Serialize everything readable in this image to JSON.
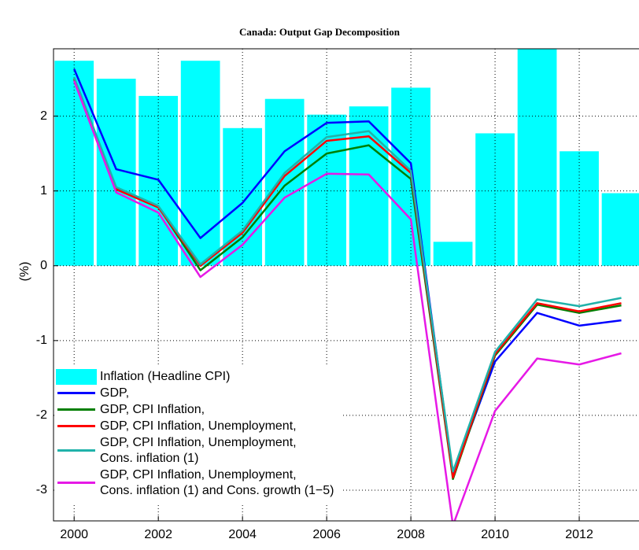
{
  "chart_data": {
    "type": "combo",
    "title": "Canada: Output Gap Decomposition",
    "y_label": "(%)",
    "x": [
      2000,
      2001,
      2002,
      2003,
      2004,
      2005,
      2006,
      2007,
      2008,
      2009,
      2010,
      2011,
      2012,
      2013
    ],
    "xlim": [
      1999.51,
      2013.42
    ],
    "xticks": [
      2000,
      2002,
      2004,
      2006,
      2008,
      2010,
      2012
    ],
    "ylim": [
      -3.41,
      2.9
    ],
    "yticks": [
      -3,
      -2,
      -1,
      0,
      1,
      2
    ],
    "grid": true,
    "legend": "lower left",
    "series": [
      {
        "name": "Inflation (Headline CPI)",
        "type": "bar",
        "color": "#00ffff",
        "values": [
          2.74,
          2.5,
          2.27,
          2.74,
          1.84,
          2.23,
          2.02,
          2.13,
          2.38,
          0.32,
          1.77,
          2.9,
          1.53,
          0.97
        ]
      },
      {
        "name": "GDP,",
        "type": "line",
        "color": "#0000ff",
        "values": [
          2.63,
          1.29,
          1.15,
          0.37,
          0.84,
          1.53,
          1.91,
          1.93,
          1.37,
          -2.8,
          -1.28,
          -0.63,
          -0.8,
          -0.73
        ]
      },
      {
        "name": "GDP, CPI Inflation,",
        "type": "line",
        "color": "#007f00",
        "values": [
          2.5,
          1.03,
          0.79,
          -0.06,
          0.38,
          1.07,
          1.5,
          1.61,
          1.16,
          -2.85,
          -1.2,
          -0.52,
          -0.63,
          -0.53
        ]
      },
      {
        "name": "GDP, CPI Inflation, Unemployment,",
        "type": "line",
        "color": "#ff0000",
        "values": [
          2.5,
          1.02,
          0.78,
          0.0,
          0.44,
          1.2,
          1.67,
          1.73,
          1.24,
          -2.83,
          -1.18,
          -0.5,
          -0.61,
          -0.5
        ]
      },
      {
        "name": "GDP, CPI Inflation, Unemployment,\nCons. inflation (1)",
        "type": "line",
        "color": "#20b2aa",
        "values": [
          2.52,
          1.05,
          0.8,
          0.02,
          0.47,
          1.24,
          1.72,
          1.8,
          1.27,
          -2.75,
          -1.15,
          -0.45,
          -0.54,
          -0.43
        ]
      },
      {
        "name": "GDP, CPI Inflation, Unemployment,\nCons. inflation (1) and Cons. growth (1−5)",
        "type": "line",
        "color": "#e619e6",
        "values": [
          2.47,
          0.98,
          0.71,
          -0.15,
          0.28,
          0.91,
          1.23,
          1.22,
          0.62,
          -3.47,
          -1.94,
          -1.24,
          -1.32,
          -1.17
        ]
      }
    ]
  }
}
